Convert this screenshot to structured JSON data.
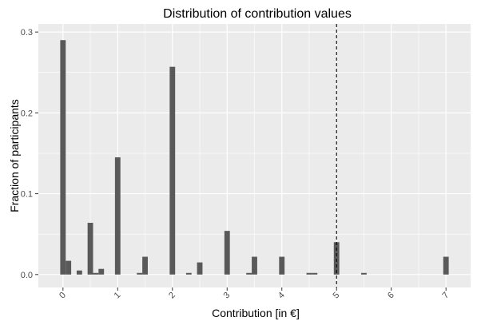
{
  "chart_data": {
    "type": "bar",
    "title": "Distribution of contribution values",
    "xlabel": "Contribution [in €]",
    "ylabel": "Fraction of participants",
    "xlim": [
      -0.45,
      7.45
    ],
    "ylim": [
      -0.016,
      0.31
    ],
    "x_ticks": [
      0,
      1,
      2,
      3,
      4,
      5,
      6,
      7
    ],
    "x_tick_labels": [
      "0",
      "1",
      "2",
      "3",
      "4",
      "5",
      "6",
      "7"
    ],
    "y_ticks": [
      0.0,
      0.1,
      0.2,
      0.3
    ],
    "y_tick_labels": [
      "0.0",
      "0.1",
      "0.2",
      "0.3"
    ],
    "bin_width": 0.1,
    "grid": true,
    "bar_color": "#595959",
    "panel_background": "#ebebeb",
    "grid_color": "#ffffff",
    "reference_line": {
      "x": 5,
      "style": "dashed",
      "color": "#000000"
    },
    "bars": [
      {
        "x": 0.0,
        "y": 0.29
      },
      {
        "x": 0.1,
        "y": 0.017
      },
      {
        "x": 0.3,
        "y": 0.005
      },
      {
        "x": 0.5,
        "y": 0.064
      },
      {
        "x": 0.6,
        "y": 0.002
      },
      {
        "x": 0.7,
        "y": 0.007
      },
      {
        "x": 1.0,
        "y": 0.145
      },
      {
        "x": 1.4,
        "y": 0.002
      },
      {
        "x": 1.5,
        "y": 0.022
      },
      {
        "x": 2.0,
        "y": 0.257
      },
      {
        "x": 2.3,
        "y": 0.002
      },
      {
        "x": 2.5,
        "y": 0.015
      },
      {
        "x": 3.0,
        "y": 0.054
      },
      {
        "x": 3.4,
        "y": 0.002
      },
      {
        "x": 3.5,
        "y": 0.022
      },
      {
        "x": 4.0,
        "y": 0.022
      },
      {
        "x": 4.5,
        "y": 0.002
      },
      {
        "x": 4.6,
        "y": 0.002
      },
      {
        "x": 5.0,
        "y": 0.04
      },
      {
        "x": 5.5,
        "y": 0.002
      },
      {
        "x": 7.0,
        "y": 0.022
      }
    ]
  }
}
